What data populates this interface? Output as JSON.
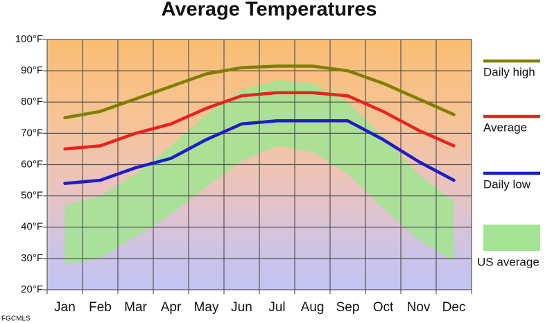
{
  "chart_data": {
    "type": "line",
    "title": "Average Temperatures",
    "categories": [
      "Jan",
      "Feb",
      "Mar",
      "Apr",
      "May",
      "Jun",
      "Jul",
      "Aug",
      "Sep",
      "Oct",
      "Nov",
      "Dec"
    ],
    "series": [
      {
        "name": "Daily high",
        "color": "#7f7f00",
        "values": [
          75,
          77,
          81,
          85,
          89,
          91,
          91.5,
          91.5,
          90,
          86,
          81,
          76
        ]
      },
      {
        "name": "Average",
        "color": "#e8231f",
        "values": [
          65,
          66,
          70,
          73,
          78,
          82,
          83,
          83,
          82,
          77,
          71,
          66
        ]
      },
      {
        "name": "Daily low",
        "color": "#1c1cc8",
        "values": [
          54,
          55,
          59,
          62,
          68,
          73,
          74,
          74,
          74,
          68,
          61,
          55
        ]
      },
      {
        "name": "US average",
        "color": "#a4e394",
        "type": "band",
        "low": [
          28,
          30,
          37,
          44,
          53,
          61,
          66,
          64,
          57,
          46,
          36,
          29
        ],
        "high": [
          47,
          50,
          57,
          66,
          76,
          84,
          87,
          86,
          80,
          69,
          57,
          48
        ]
      }
    ],
    "ylim": [
      20,
      100
    ],
    "yticks": [
      {
        "value": 20,
        "label": "20°F"
      },
      {
        "value": 30,
        "label": "30°F"
      },
      {
        "value": 40,
        "label": "40°F"
      },
      {
        "value": 50,
        "label": "50°F"
      },
      {
        "value": 60,
        "label": "60°F"
      },
      {
        "value": 70,
        "label": "70°F"
      },
      {
        "value": 80,
        "label": "80°F"
      },
      {
        "value": 90,
        "label": "90°F"
      },
      {
        "value": 100,
        "label": "100°F"
      }
    ],
    "grid": true,
    "legend": "right",
    "watermark": "FGCMLS"
  }
}
